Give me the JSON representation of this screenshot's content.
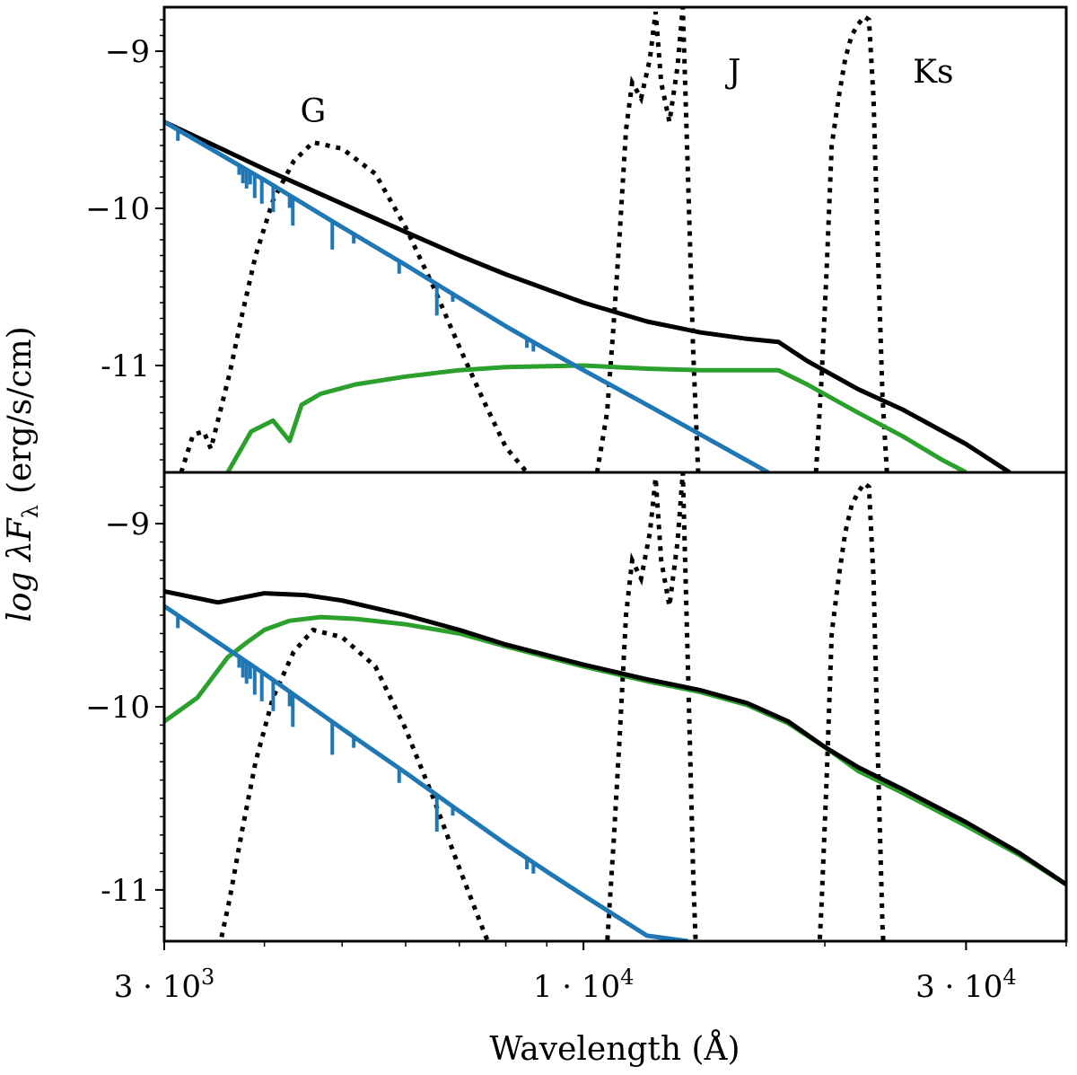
{
  "chart_data": {
    "type": "line",
    "xlabel": "Wavelength (Å)",
    "ylabel": "log λF",
    "ylabel_sub": "λ",
    "ylabel_units": "(erg/s/cm)",
    "x_scale": "log",
    "xlim": [
      3000,
      40000
    ],
    "x_ticks": [
      {
        "value": 3000,
        "label": "3 · 10",
        "exp": "3"
      },
      {
        "value": 10000,
        "label": "1 · 10",
        "exp": "4"
      },
      {
        "value": 30000,
        "label": "3 · 10",
        "exp": "4"
      }
    ],
    "colors": {
      "total": "#000000",
      "hot_component": "#1f77b4",
      "cool_component": "#2ca02c",
      "filters": "#000000"
    },
    "band_labels": [
      {
        "text": "G",
        "wavelength": 4600
      },
      {
        "text": "J",
        "wavelength": 14200
      },
      {
        "text": "Ks",
        "wavelength": 24000
      }
    ],
    "panels": [
      {
        "position": "top",
        "ylim": [
          -11.68,
          -8.72
        ],
        "y_ticks": [
          {
            "value": -9,
            "label": "−9"
          },
          {
            "value": -10,
            "label": "−10"
          },
          {
            "value": -11,
            "label": "-11"
          }
        ],
        "series": [
          {
            "key": "total",
            "points": [
              [
                3000,
                -9.45
              ],
              [
                4000,
                -9.75
              ],
              [
                5000,
                -9.97
              ],
              [
                6000,
                -10.15
              ],
              [
                7000,
                -10.3
              ],
              [
                8000,
                -10.42
              ],
              [
                10000,
                -10.6
              ],
              [
                12000,
                -10.72
              ],
              [
                14000,
                -10.79
              ],
              [
                16000,
                -10.83
              ],
              [
                17500,
                -10.85
              ],
              [
                19000,
                -10.97
              ],
              [
                22000,
                -11.15
              ],
              [
                25000,
                -11.28
              ],
              [
                30000,
                -11.5
              ],
              [
                34000,
                -11.68
              ]
            ]
          },
          {
            "key": "hot_component",
            "points": [
              [
                3000,
                -9.45
              ],
              [
                4000,
                -9.82
              ],
              [
                5000,
                -10.12
              ],
              [
                6000,
                -10.36
              ],
              [
                7000,
                -10.57
              ],
              [
                8000,
                -10.75
              ],
              [
                9000,
                -10.9
              ],
              [
                10000,
                -11.03
              ],
              [
                12000,
                -11.25
              ],
              [
                14000,
                -11.44
              ],
              [
                17000,
                -11.68
              ]
            ]
          },
          {
            "key": "cool_component",
            "points": [
              [
                3600,
                -11.68
              ],
              [
                3850,
                -11.42
              ],
              [
                4100,
                -11.35
              ],
              [
                4300,
                -11.48
              ],
              [
                4450,
                -11.25
              ],
              [
                4700,
                -11.18
              ],
              [
                5200,
                -11.12
              ],
              [
                6000,
                -11.07
              ],
              [
                7000,
                -11.03
              ],
              [
                8000,
                -11.01
              ],
              [
                10000,
                -11.0
              ],
              [
                12000,
                -11.02
              ],
              [
                14000,
                -11.03
              ],
              [
                16000,
                -11.03
              ],
              [
                17500,
                -11.03
              ],
              [
                19000,
                -11.12
              ],
              [
                22000,
                -11.3
              ],
              [
                25000,
                -11.45
              ],
              [
                28000,
                -11.6
              ],
              [
                30000,
                -11.68
              ]
            ]
          }
        ]
      },
      {
        "position": "bottom",
        "ylim": [
          -11.28,
          -8.72
        ],
        "y_ticks": [
          {
            "value": -9,
            "label": "−9"
          },
          {
            "value": -10,
            "label": "−10"
          },
          {
            "value": -11,
            "label": "-11"
          }
        ],
        "series": [
          {
            "key": "total",
            "points": [
              [
                3000,
                -9.37
              ],
              [
                3500,
                -9.43
              ],
              [
                4000,
                -9.38
              ],
              [
                4500,
                -9.39
              ],
              [
                5000,
                -9.42
              ],
              [
                6000,
                -9.5
              ],
              [
                7000,
                -9.58
              ],
              [
                8000,
                -9.66
              ],
              [
                10000,
                -9.77
              ],
              [
                12000,
                -9.85
              ],
              [
                14000,
                -9.91
              ],
              [
                16000,
                -9.98
              ],
              [
                18000,
                -10.08
              ],
              [
                20000,
                -10.22
              ],
              [
                22000,
                -10.33
              ],
              [
                25000,
                -10.45
              ],
              [
                30000,
                -10.63
              ],
              [
                35000,
                -10.8
              ],
              [
                40000,
                -10.97
              ]
            ]
          },
          {
            "key": "hot_component",
            "points": [
              [
                3000,
                -9.45
              ],
              [
                4000,
                -9.82
              ],
              [
                5000,
                -10.12
              ],
              [
                6000,
                -10.36
              ],
              [
                7000,
                -10.57
              ],
              [
                8000,
                -10.75
              ],
              [
                9000,
                -10.9
              ],
              [
                10000,
                -11.03
              ],
              [
                12000,
                -11.25
              ],
              [
                13500,
                -11.28
              ]
            ]
          },
          {
            "key": "cool_component",
            "points": [
              [
                3000,
                -10.08
              ],
              [
                3300,
                -9.95
              ],
              [
                3600,
                -9.73
              ],
              [
                3800,
                -9.65
              ],
              [
                4000,
                -9.58
              ],
              [
                4300,
                -9.53
              ],
              [
                4700,
                -9.51
              ],
              [
                5200,
                -9.52
              ],
              [
                6000,
                -9.55
              ],
              [
                7000,
                -9.6
              ],
              [
                8000,
                -9.67
              ],
              [
                10000,
                -9.78
              ],
              [
                12000,
                -9.86
              ],
              [
                14000,
                -9.92
              ],
              [
                16000,
                -9.99
              ],
              [
                18000,
                -10.09
              ],
              [
                20000,
                -10.22
              ],
              [
                22000,
                -10.35
              ],
              [
                25000,
                -10.47
              ],
              [
                30000,
                -10.65
              ],
              [
                35000,
                -10.81
              ],
              [
                40000,
                -10.97
              ]
            ]
          }
        ]
      }
    ],
    "filter_curves": [
      {
        "name": "G",
        "points": [
          [
            3150,
            -11.68
          ],
          [
            3260,
            -11.44
          ],
          [
            3360,
            -11.42
          ],
          [
            3430,
            -11.53
          ],
          [
            3520,
            -11.3
          ],
          [
            3620,
            -11.05
          ],
          [
            3750,
            -10.68
          ],
          [
            3900,
            -10.3
          ],
          [
            4100,
            -9.95
          ],
          [
            4350,
            -9.7
          ],
          [
            4600,
            -9.58
          ],
          [
            5000,
            -9.62
          ],
          [
            5500,
            -9.78
          ],
          [
            6000,
            -10.12
          ],
          [
            6500,
            -10.5
          ],
          [
            7000,
            -10.88
          ],
          [
            7500,
            -11.22
          ],
          [
            8000,
            -11.52
          ],
          [
            8500,
            -11.68
          ]
        ]
      },
      {
        "name": "J",
        "points": [
          [
            10400,
            -11.68
          ],
          [
            10700,
            -11.3
          ],
          [
            10900,
            -10.75
          ],
          [
            11100,
            -10.15
          ],
          [
            11300,
            -9.5
          ],
          [
            11500,
            -9.2
          ],
          [
            11800,
            -9.3
          ],
          [
            12100,
            -9.05
          ],
          [
            12300,
            -8.75
          ],
          [
            12500,
            -9.2
          ],
          [
            12800,
            -9.45
          ],
          [
            13100,
            -9.1
          ],
          [
            13300,
            -8.72
          ],
          [
            13500,
            -9.8
          ],
          [
            13700,
            -10.9
          ],
          [
            13900,
            -11.68
          ]
        ]
      },
      {
        "name": "Ks",
        "points": [
          [
            19500,
            -11.68
          ],
          [
            19800,
            -11.1
          ],
          [
            20100,
            -10.4
          ],
          [
            20400,
            -9.6
          ],
          [
            20800,
            -9.3
          ],
          [
            21200,
            -9.05
          ],
          [
            21600,
            -8.9
          ],
          [
            22000,
            -8.83
          ],
          [
            22400,
            -8.78
          ],
          [
            22700,
            -8.8
          ],
          [
            23000,
            -9.3
          ],
          [
            23300,
            -10.3
          ],
          [
            23600,
            -11.2
          ],
          [
            23900,
            -11.68
          ]
        ]
      }
    ],
    "absorption_features": [
      {
        "wavelength": 3120,
        "depth": 0.07
      },
      {
        "wavelength": 3720,
        "depth": 0.06
      },
      {
        "wavelength": 3760,
        "depth": 0.1
      },
      {
        "wavelength": 3800,
        "depth": 0.12
      },
      {
        "wavelength": 3840,
        "depth": 0.08
      },
      {
        "wavelength": 3890,
        "depth": 0.15
      },
      {
        "wavelength": 3970,
        "depth": 0.16
      },
      {
        "wavelength": 4102,
        "depth": 0.17
      },
      {
        "wavelength": 4300,
        "depth": 0.08
      },
      {
        "wavelength": 4340,
        "depth": 0.18
      },
      {
        "wavelength": 4861,
        "depth": 0.18
      },
      {
        "wavelength": 5170,
        "depth": 0.06
      },
      {
        "wavelength": 5890,
        "depth": 0.08
      },
      {
        "wavelength": 6563,
        "depth": 0.2
      },
      {
        "wavelength": 6870,
        "depth": 0.05
      },
      {
        "wavelength": 8500,
        "depth": 0.06
      },
      {
        "wavelength": 8660,
        "depth": 0.06
      }
    ],
    "grid": false,
    "legend": "none"
  }
}
